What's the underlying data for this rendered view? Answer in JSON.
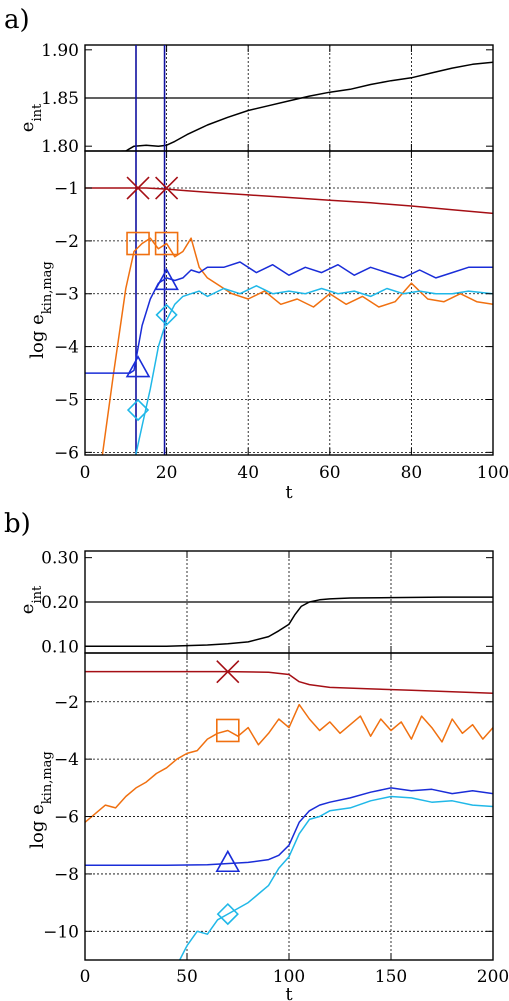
{
  "chart_data": [
    {
      "panel_label": "a)",
      "type": "line",
      "xlabel": "t",
      "xlim": [
        0,
        100
      ],
      "x_ticks": [
        "0",
        "20",
        "40",
        "60",
        "80",
        "100"
      ],
      "top": {
        "ylabel": "e",
        "ylabel_sub": "int",
        "ylim": [
          1.795,
          1.905
        ],
        "y_ticks": [
          {
            "v": 1.8,
            "label": "1.80"
          },
          {
            "v": 1.85,
            "label": "1.85"
          },
          {
            "v": 1.9,
            "label": "1.90"
          }
        ],
        "hline": 1.85,
        "series": [
          {
            "color": "#000000",
            "x": [
              0,
              10,
              12,
              15,
              18,
              20,
              22,
              25,
              30,
              35,
              40,
              45,
              50,
              55,
              60,
              65,
              70,
              75,
              80,
              85,
              90,
              95,
              100
            ],
            "y": [
              1.793,
              1.795,
              1.8,
              1.801,
              1.8,
              1.801,
              1.805,
              1.812,
              1.822,
              1.83,
              1.837,
              1.842,
              1.847,
              1.852,
              1.856,
              1.859,
              1.864,
              1.868,
              1.871,
              1.876,
              1.881,
              1.885,
              1.887
            ]
          }
        ]
      },
      "bottom": {
        "ylabel": "log e",
        "ylabel_sub": "kin,mag",
        "ylim": [
          -6.05,
          -0.3
        ],
        "y_ticks": [
          {
            "v": -1,
            "label": "-1"
          },
          {
            "v": -2,
            "label": "-2"
          },
          {
            "v": -3,
            "label": "-3"
          },
          {
            "v": -4,
            "label": "-4"
          },
          {
            "v": -5,
            "label": "-5"
          },
          {
            "v": -6,
            "label": "-6"
          }
        ],
        "series": [
          {
            "color": "#a50f15",
            "x": [
              0,
              10,
              15,
              20,
              25,
              30,
              40,
              50,
              60,
              70,
              80,
              90,
              100
            ],
            "y": [
              -1.0,
              -1.0,
              -1.0,
              -1.02,
              -1.05,
              -1.08,
              -1.13,
              -1.18,
              -1.23,
              -1.28,
              -1.34,
              -1.41,
              -1.48
            ]
          },
          {
            "color": "#f07010",
            "x": [
              4,
              7,
              10,
              12,
              14,
              16,
              18,
              20,
              22,
              24,
              26,
              28,
              30,
              33,
              36,
              40,
              44,
              48,
              52,
              56,
              60,
              64,
              68,
              72,
              76,
              80,
              84,
              88,
              92,
              96,
              100
            ],
            "y": [
              -6.2,
              -4.5,
              -2.9,
              -2.2,
              -2.05,
              -1.95,
              -2.15,
              -2.05,
              -2.3,
              -2.2,
              -1.95,
              -2.5,
              -2.7,
              -2.85,
              -3.0,
              -3.1,
              -2.95,
              -3.2,
              -3.1,
              -3.25,
              -3.0,
              -3.2,
              -3.05,
              -3.25,
              -3.15,
              -2.8,
              -3.1,
              -3.15,
              -3.0,
              -3.15,
              -3.2
            ]
          },
          {
            "color": "#1a2dd8",
            "x": [
              0,
              11,
              12,
              14,
              16,
              18,
              20,
              22,
              24,
              26,
              28,
              30,
              34,
              38,
              42,
              46,
              50,
              54,
              58,
              62,
              66,
              70,
              74,
              78,
              82,
              86,
              90,
              94,
              100
            ],
            "y": [
              -4.5,
              -4.5,
              -4.45,
              -3.6,
              -3.1,
              -2.8,
              -2.7,
              -2.75,
              -2.7,
              -2.55,
              -2.6,
              -2.5,
              -2.5,
              -2.4,
              -2.6,
              -2.45,
              -2.65,
              -2.5,
              -2.6,
              -2.45,
              -2.65,
              -2.5,
              -2.6,
              -2.7,
              -2.55,
              -2.7,
              -2.6,
              -2.5,
              -2.5
            ]
          },
          {
            "color": "#20b8e8",
            "x": [
              12,
              14,
              16,
              18,
              20,
              22,
              24,
              26,
              28,
              30,
              34,
              38,
              42,
              46,
              50,
              54,
              58,
              62,
              66,
              70,
              74,
              78,
              82,
              86,
              90,
              94,
              100
            ],
            "y": [
              -6.2,
              -5.5,
              -4.8,
              -4.0,
              -3.5,
              -3.2,
              -3.05,
              -3.0,
              -2.95,
              -3.05,
              -2.9,
              -3.0,
              -2.85,
              -3.0,
              -2.95,
              -3.0,
              -2.9,
              -3.0,
              -2.95,
              -3.05,
              -2.9,
              -3.0,
              -2.95,
              -3.0,
              -3.0,
              -2.95,
              -3.0
            ]
          }
        ],
        "markers": [
          {
            "shape": "x",
            "color": "#a50f15",
            "x": [
              13,
              20
            ],
            "y": [
              -1.0,
              -1.0
            ]
          },
          {
            "shape": "square",
            "color": "#f07010",
            "x": [
              13,
              20
            ],
            "y": [
              -2.05,
              -2.05
            ]
          },
          {
            "shape": "triangle",
            "color": "#1a2dd8",
            "x": [
              13,
              20
            ],
            "y": [
              -4.4,
              -2.75
            ]
          },
          {
            "shape": "diamond",
            "color": "#20b8e8",
            "x": [
              13,
              20
            ],
            "y": [
              -5.2,
              -3.4
            ]
          }
        ],
        "vlines": [
          {
            "x": 12.5,
            "color": "#1010a0"
          },
          {
            "x": 19.5,
            "color": "#1010a0"
          }
        ]
      }
    },
    {
      "panel_label": "b)",
      "type": "line",
      "xlabel": "t",
      "xlim": [
        0,
        200
      ],
      "x_ticks": [
        "0",
        "50",
        "100",
        "150",
        "200"
      ],
      "top": {
        "ylabel": "e",
        "ylabel_sub": "int",
        "ylim": [
          0.085,
          0.315
        ],
        "y_ticks": [
          {
            "v": 0.1,
            "label": "0.10"
          },
          {
            "v": 0.2,
            "label": "0.20"
          },
          {
            "v": 0.3,
            "label": "0.30"
          }
        ],
        "hline": 0.2,
        "series": [
          {
            "color": "#000000",
            "x": [
              0,
              20,
              40,
              60,
              70,
              80,
              90,
              95,
              100,
              103,
              106,
              110,
              115,
              120,
              130,
              150,
              175,
              200
            ],
            "y": [
              0.1,
              0.1,
              0.1,
              0.103,
              0.106,
              0.11,
              0.122,
              0.135,
              0.15,
              0.172,
              0.19,
              0.2,
              0.205,
              0.207,
              0.209,
              0.21,
              0.211,
              0.211
            ]
          }
        ]
      },
      "bottom": {
        "ylabel": "log e",
        "ylabel_sub": "kin,mag",
        "ylim": [
          -11,
          -0.3
        ],
        "y_ticks": [
          {
            "v": -2,
            "label": "-2"
          },
          {
            "v": -4,
            "label": "-4"
          },
          {
            "v": -6,
            "label": "-6"
          },
          {
            "v": -8,
            "label": "-8"
          },
          {
            "v": -10,
            "label": "-10"
          }
        ],
        "series": [
          {
            "color": "#a50f15",
            "x": [
              0,
              50,
              70,
              90,
              100,
              105,
              110,
              120,
              140,
              160,
              180,
              200
            ],
            "y": [
              -0.95,
              -0.95,
              -0.95,
              -0.97,
              -1.05,
              -1.3,
              -1.4,
              -1.5,
              -1.55,
              -1.6,
              -1.65,
              -1.7
            ]
          },
          {
            "color": "#f07010",
            "x": [
              0,
              5,
              10,
              15,
              20,
              25,
              30,
              35,
              40,
              45,
              50,
              55,
              60,
              65,
              70,
              75,
              80,
              85,
              90,
              95,
              100,
              105,
              110,
              115,
              120,
              125,
              130,
              135,
              140,
              145,
              150,
              155,
              160,
              165,
              170,
              175,
              180,
              185,
              190,
              195,
              200
            ],
            "y": [
              -6.2,
              -5.9,
              -5.6,
              -5.7,
              -5.3,
              -5.0,
              -4.8,
              -4.5,
              -4.3,
              -4.0,
              -3.8,
              -3.7,
              -3.3,
              -3.1,
              -3.0,
              -3.2,
              -2.9,
              -3.5,
              -3.1,
              -2.6,
              -2.9,
              -2.1,
              -2.6,
              -3.0,
              -2.7,
              -3.1,
              -2.8,
              -2.5,
              -3.2,
              -2.6,
              -3.0,
              -2.7,
              -3.3,
              -2.5,
              -2.9,
              -3.4,
              -2.6,
              -3.1,
              -2.8,
              -3.3,
              -2.9
            ]
          },
          {
            "color": "#1a2dd8",
            "x": [
              0,
              40,
              60,
              80,
              90,
              95,
              100,
              105,
              110,
              115,
              120,
              130,
              140,
              150,
              160,
              170,
              180,
              190,
              200
            ],
            "y": [
              -7.7,
              -7.7,
              -7.68,
              -7.6,
              -7.5,
              -7.35,
              -7.0,
              -6.2,
              -5.8,
              -5.6,
              -5.5,
              -5.35,
              -5.15,
              -5.0,
              -5.1,
              -5.05,
              -5.2,
              -5.1,
              -5.2
            ]
          },
          {
            "color": "#20b8e8",
            "x": [
              45,
              50,
              55,
              60,
              65,
              70,
              75,
              80,
              85,
              90,
              95,
              100,
              105,
              110,
              115,
              120,
              130,
              140,
              150,
              160,
              170,
              180,
              190,
              200
            ],
            "y": [
              -11.2,
              -10.5,
              -10.0,
              -10.1,
              -9.6,
              -9.4,
              -9.2,
              -9.0,
              -8.7,
              -8.4,
              -7.8,
              -7.4,
              -6.6,
              -6.1,
              -6.0,
              -5.8,
              -5.7,
              -5.45,
              -5.3,
              -5.35,
              -5.5,
              -5.45,
              -5.6,
              -5.65
            ]
          }
        ],
        "markers": [
          {
            "shape": "x",
            "color": "#a50f15",
            "x": [
              70
            ],
            "y": [
              -0.95
            ]
          },
          {
            "shape": "square",
            "color": "#f07010",
            "x": [
              70
            ],
            "y": [
              -3.0
            ]
          },
          {
            "shape": "triangle",
            "color": "#1a2dd8",
            "x": [
              70
            ],
            "y": [
              -7.6
            ]
          },
          {
            "shape": "diamond",
            "color": "#20b8e8",
            "x": [
              70
            ],
            "y": [
              -9.4
            ]
          }
        ],
        "vlines": []
      }
    }
  ]
}
